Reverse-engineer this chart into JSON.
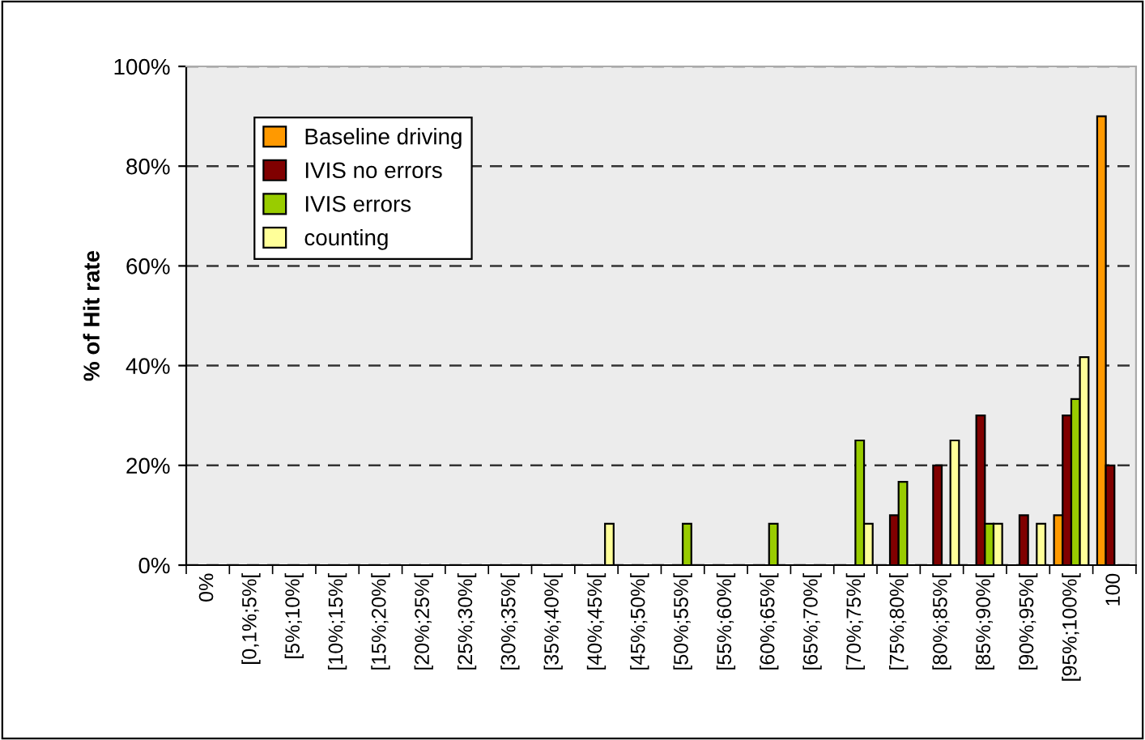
{
  "chart_data": {
    "type": "bar",
    "ylabel": "% of Hit rate",
    "categories": [
      "0%",
      "[0,1%;5%[",
      "[5%;10%[",
      "[10%;15%[",
      "[15%;20%[",
      "[20%;25%[",
      "[25%;30%[",
      "[30%;35%[",
      "[35%;40%[",
      "[40%;45%[",
      "[45%;50%[",
      "[50%;55%[",
      "[55%;60%[",
      "[60%;65%[",
      "[65%;70%[",
      "[70%;75%[",
      "[75%;80%[",
      "[80%;85%[",
      "[85%;90%[",
      "[90%;95%[",
      "[95%;100%[",
      "100"
    ],
    "series": [
      {
        "name": "Baseline driving",
        "color": "#ff9900",
        "values": [
          null,
          null,
          null,
          null,
          null,
          null,
          null,
          null,
          null,
          null,
          null,
          null,
          null,
          null,
          null,
          null,
          null,
          null,
          null,
          null,
          10,
          90
        ]
      },
      {
        "name": "IVIS no errors",
        "color": "#800000",
        "values": [
          null,
          null,
          null,
          null,
          null,
          null,
          null,
          null,
          null,
          null,
          null,
          null,
          null,
          null,
          null,
          null,
          10,
          20,
          30,
          10,
          30,
          20
        ]
      },
      {
        "name": "IVIS errors",
        "color": "#99cc00",
        "values": [
          null,
          null,
          null,
          null,
          null,
          null,
          null,
          null,
          null,
          null,
          null,
          8.3,
          null,
          8.3,
          null,
          25,
          16.7,
          null,
          8.3,
          null,
          33.3,
          null
        ]
      },
      {
        "name": "counting",
        "color": "#ffff99",
        "values": [
          null,
          null,
          null,
          null,
          null,
          null,
          null,
          null,
          null,
          8.3,
          null,
          null,
          null,
          null,
          null,
          8.3,
          null,
          25,
          8.3,
          8.3,
          41.7,
          null
        ]
      }
    ],
    "ylim": [
      0,
      100
    ],
    "yticks": [
      {
        "value": 0,
        "label": "0%"
      },
      {
        "value": 20,
        "label": "20%"
      },
      {
        "value": 40,
        "label": "40%"
      },
      {
        "value": 60,
        "label": "60%"
      },
      {
        "value": 80,
        "label": "80%"
      },
      {
        "value": 100,
        "label": "100%"
      }
    ],
    "grid": "y",
    "legend": "top left"
  }
}
